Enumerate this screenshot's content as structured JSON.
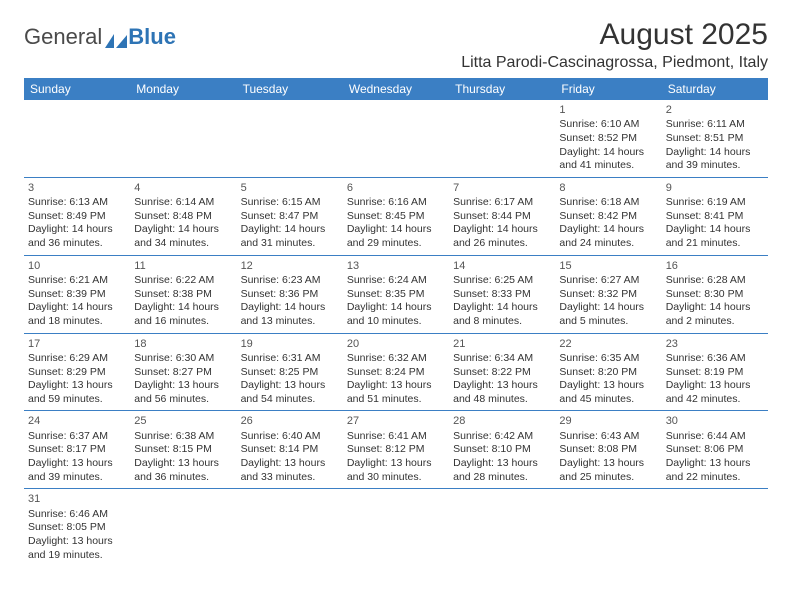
{
  "logo": {
    "part1": "General",
    "part2": "Blue"
  },
  "title": "August 2025",
  "location": "Litta Parodi-Cascinagrossa, Piedmont, Italy",
  "colors": {
    "header_bg": "#3b7fc4",
    "header_text": "#ffffff",
    "cell_border": "#3b7fc4",
    "text": "#333333",
    "logo_gray": "#4a4a4a",
    "logo_blue": "#2e74b5"
  },
  "day_headers": [
    "Sunday",
    "Monday",
    "Tuesday",
    "Wednesday",
    "Thursday",
    "Friday",
    "Saturday"
  ],
  "weeks": [
    [
      null,
      null,
      null,
      null,
      null,
      {
        "n": "1",
        "sunrise": "6:10 AM",
        "sunset": "8:52 PM",
        "dl_h": 14,
        "dl_m": 41
      },
      {
        "n": "2",
        "sunrise": "6:11 AM",
        "sunset": "8:51 PM",
        "dl_h": 14,
        "dl_m": 39
      }
    ],
    [
      {
        "n": "3",
        "sunrise": "6:13 AM",
        "sunset": "8:49 PM",
        "dl_h": 14,
        "dl_m": 36
      },
      {
        "n": "4",
        "sunrise": "6:14 AM",
        "sunset": "8:48 PM",
        "dl_h": 14,
        "dl_m": 34
      },
      {
        "n": "5",
        "sunrise": "6:15 AM",
        "sunset": "8:47 PM",
        "dl_h": 14,
        "dl_m": 31
      },
      {
        "n": "6",
        "sunrise": "6:16 AM",
        "sunset": "8:45 PM",
        "dl_h": 14,
        "dl_m": 29
      },
      {
        "n": "7",
        "sunrise": "6:17 AM",
        "sunset": "8:44 PM",
        "dl_h": 14,
        "dl_m": 26
      },
      {
        "n": "8",
        "sunrise": "6:18 AM",
        "sunset": "8:42 PM",
        "dl_h": 14,
        "dl_m": 24
      },
      {
        "n": "9",
        "sunrise": "6:19 AM",
        "sunset": "8:41 PM",
        "dl_h": 14,
        "dl_m": 21
      }
    ],
    [
      {
        "n": "10",
        "sunrise": "6:21 AM",
        "sunset": "8:39 PM",
        "dl_h": 14,
        "dl_m": 18
      },
      {
        "n": "11",
        "sunrise": "6:22 AM",
        "sunset": "8:38 PM",
        "dl_h": 14,
        "dl_m": 16
      },
      {
        "n": "12",
        "sunrise": "6:23 AM",
        "sunset": "8:36 PM",
        "dl_h": 14,
        "dl_m": 13
      },
      {
        "n": "13",
        "sunrise": "6:24 AM",
        "sunset": "8:35 PM",
        "dl_h": 14,
        "dl_m": 10
      },
      {
        "n": "14",
        "sunrise": "6:25 AM",
        "sunset": "8:33 PM",
        "dl_h": 14,
        "dl_m": 8
      },
      {
        "n": "15",
        "sunrise": "6:27 AM",
        "sunset": "8:32 PM",
        "dl_h": 14,
        "dl_m": 5
      },
      {
        "n": "16",
        "sunrise": "6:28 AM",
        "sunset": "8:30 PM",
        "dl_h": 14,
        "dl_m": 2
      }
    ],
    [
      {
        "n": "17",
        "sunrise": "6:29 AM",
        "sunset": "8:29 PM",
        "dl_h": 13,
        "dl_m": 59
      },
      {
        "n": "18",
        "sunrise": "6:30 AM",
        "sunset": "8:27 PM",
        "dl_h": 13,
        "dl_m": 56
      },
      {
        "n": "19",
        "sunrise": "6:31 AM",
        "sunset": "8:25 PM",
        "dl_h": 13,
        "dl_m": 54
      },
      {
        "n": "20",
        "sunrise": "6:32 AM",
        "sunset": "8:24 PM",
        "dl_h": 13,
        "dl_m": 51
      },
      {
        "n": "21",
        "sunrise": "6:34 AM",
        "sunset": "8:22 PM",
        "dl_h": 13,
        "dl_m": 48
      },
      {
        "n": "22",
        "sunrise": "6:35 AM",
        "sunset": "8:20 PM",
        "dl_h": 13,
        "dl_m": 45
      },
      {
        "n": "23",
        "sunrise": "6:36 AM",
        "sunset": "8:19 PM",
        "dl_h": 13,
        "dl_m": 42
      }
    ],
    [
      {
        "n": "24",
        "sunrise": "6:37 AM",
        "sunset": "8:17 PM",
        "dl_h": 13,
        "dl_m": 39
      },
      {
        "n": "25",
        "sunrise": "6:38 AM",
        "sunset": "8:15 PM",
        "dl_h": 13,
        "dl_m": 36
      },
      {
        "n": "26",
        "sunrise": "6:40 AM",
        "sunset": "8:14 PM",
        "dl_h": 13,
        "dl_m": 33
      },
      {
        "n": "27",
        "sunrise": "6:41 AM",
        "sunset": "8:12 PM",
        "dl_h": 13,
        "dl_m": 30
      },
      {
        "n": "28",
        "sunrise": "6:42 AM",
        "sunset": "8:10 PM",
        "dl_h": 13,
        "dl_m": 28
      },
      {
        "n": "29",
        "sunrise": "6:43 AM",
        "sunset": "8:08 PM",
        "dl_h": 13,
        "dl_m": 25
      },
      {
        "n": "30",
        "sunrise": "6:44 AM",
        "sunset": "8:06 PM",
        "dl_h": 13,
        "dl_m": 22
      }
    ],
    [
      {
        "n": "31",
        "sunrise": "6:46 AM",
        "sunset": "8:05 PM",
        "dl_h": 13,
        "dl_m": 19
      },
      null,
      null,
      null,
      null,
      null,
      null
    ]
  ],
  "labels": {
    "sunrise": "Sunrise:",
    "sunset": "Sunset:",
    "daylight": "Daylight:",
    "hours": "hours",
    "and": "and",
    "minutes": "minutes."
  }
}
